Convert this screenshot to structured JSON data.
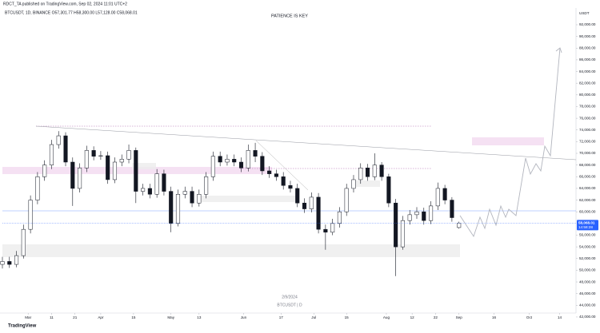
{
  "header": {
    "publisher": "RDCT_TA published on TradingView.com, Sep 02, 2024 11:01 UTC+2",
    "symbol_line": "BTCUSDT, 1D, BINANCE O57,301.77 H58,300.00 L57,128.00 C58,068.01"
  },
  "chart_data": {
    "type": "candlestick",
    "title": "PATIENCE IS KEY",
    "watermark_date": "2/9/2024",
    "watermark_symbol": "BTCUSDT | D",
    "currency": "USDT",
    "price_tag": "58,068.01",
    "countdown": "14:58:28",
    "brand": "TradingView",
    "up_color": "#ffffff",
    "down_color": "#131722",
    "outline_color": "#131722",
    "grid": false,
    "x": [
      -11,
      -8,
      -5,
      -2,
      1,
      4,
      7,
      10,
      13,
      16,
      19,
      22,
      25,
      28,
      31,
      34,
      37,
      40,
      43,
      46,
      49,
      52,
      55,
      58,
      61,
      64,
      67,
      70,
      73,
      76,
      79,
      82,
      85,
      88,
      91,
      94,
      97,
      100,
      103,
      106,
      109,
      112,
      115,
      118,
      121,
      124,
      127,
      130,
      133,
      136,
      139,
      142,
      145,
      148,
      151,
      154,
      157,
      160,
      163,
      166,
      169,
      172,
      175,
      178,
      181,
      184
    ],
    "open": [
      51000,
      51500,
      51000,
      52500,
      57000,
      62000,
      66000,
      68000,
      71500,
      73000,
      68500,
      64000,
      67500,
      70500,
      69500,
      69600,
      65500,
      68500,
      69000,
      70500,
      63500,
      64000,
      63000,
      66500,
      63500,
      58000,
      63000,
      63500,
      61500,
      63000,
      66000,
      69500,
      68500,
      69000,
      68500,
      67500,
      70500,
      69500,
      67000,
      66500,
      66000,
      64500,
      64000,
      61500,
      60500,
      62500,
      57000,
      56500,
      58000,
      60000,
      64000,
      65500,
      67500,
      66000,
      68000,
      66000,
      61500,
      54000,
      58500,
      59500,
      60000,
      58500,
      61000,
      64000,
      62000,
      57301.77
    ],
    "high": [
      52300,
      52300,
      53300,
      57800,
      62800,
      66800,
      68800,
      72300,
      73800,
      73600,
      69300,
      68300,
      71300,
      71200,
      70400,
      70300,
      69300,
      69800,
      71500,
      71000,
      64800,
      64800,
      67300,
      67200,
      64300,
      63800,
      64300,
      64300,
      63800,
      66800,
      70300,
      70300,
      69800,
      69800,
      69300,
      71500,
      71800,
      70200,
      67800,
      67200,
      66800,
      65300,
      64800,
      62300,
      63300,
      63200,
      57800,
      58800,
      60800,
      64800,
      66300,
      68300,
      68200,
      70000,
      68500,
      66500,
      62200,
      59300,
      60300,
      60800,
      60700,
      61800,
      65000,
      64600,
      62500,
      58300
    ],
    "low": [
      50300,
      50400,
      50500,
      52000,
      56300,
      61300,
      65300,
      67300,
      70800,
      67800,
      61000,
      63300,
      66800,
      68800,
      68900,
      64800,
      64900,
      67800,
      68300,
      61500,
      62800,
      62300,
      62400,
      62800,
      56500,
      57500,
      62300,
      60800,
      60900,
      62300,
      65300,
      67800,
      67900,
      67800,
      66800,
      66900,
      68500,
      66300,
      65800,
      65300,
      63800,
      63300,
      60800,
      59800,
      59900,
      56300,
      53500,
      56000,
      57300,
      59300,
      63300,
      64800,
      65300,
      65400,
      65300,
      60800,
      49000,
      53500,
      57800,
      58800,
      57800,
      57900,
      60300,
      61300,
      58300,
      57128
    ],
    "close": [
      51500,
      51000,
      52500,
      57000,
      62000,
      66000,
      68000,
      71500,
      73000,
      68500,
      64000,
      67500,
      70500,
      69500,
      69600,
      65500,
      68500,
      69000,
      70500,
      63500,
      64000,
      63000,
      66500,
      63500,
      58000,
      63000,
      63500,
      61500,
      63000,
      66000,
      69500,
      68500,
      69000,
      68500,
      67500,
      70500,
      69500,
      67000,
      66500,
      66000,
      64500,
      64000,
      61500,
      60500,
      62500,
      57000,
      56500,
      58000,
      60000,
      64000,
      65500,
      67500,
      66000,
      68000,
      66000,
      61500,
      54000,
      58500,
      59500,
      60000,
      58500,
      61000,
      64000,
      62000,
      59000,
      58068.01
    ],
    "xlim": [
      -11,
      234
    ],
    "xticks": [
      {
        "value": 0,
        "label": "Mar"
      },
      {
        "value": 10,
        "label": "11"
      },
      {
        "value": 20,
        "label": "21"
      },
      {
        "value": 31,
        "label": "Apr"
      },
      {
        "value": 45,
        "label": "15"
      },
      {
        "value": 61,
        "label": "May"
      },
      {
        "value": 73,
        "label": "13"
      },
      {
        "value": 92,
        "label": "Jun"
      },
      {
        "value": 108,
        "label": "17"
      },
      {
        "value": 122,
        "label": "Jul"
      },
      {
        "value": 136,
        "label": "15"
      },
      {
        "value": 153,
        "label": "Aug"
      },
      {
        "value": 164,
        "label": "12"
      },
      {
        "value": 174,
        "label": "22"
      },
      {
        "value": 184,
        "label": "Sep"
      },
      {
        "value": 199,
        "label": "16"
      },
      {
        "value": 214,
        "label": "Oct"
      },
      {
        "value": 227,
        "label": "14"
      }
    ],
    "ylim": [
      40900,
      94870
    ],
    "yticks": [
      {
        "value": 92000,
        "label": "92,000.00"
      },
      {
        "value": 90000,
        "label": "90,000.00"
      },
      {
        "value": 88000,
        "label": "88,000.00"
      },
      {
        "value": 86000,
        "label": "86,000.00"
      },
      {
        "value": 84000,
        "label": "84,000.00"
      },
      {
        "value": 82000,
        "label": "82,000.00"
      },
      {
        "value": 80000,
        "label": "80,000.00"
      },
      {
        "value": 78000,
        "label": "78,000.00"
      },
      {
        "value": 76000,
        "label": "76,000.00"
      },
      {
        "value": 74000,
        "label": "74,000.00"
      },
      {
        "value": 72000,
        "label": "72,000.00"
      },
      {
        "value": 70000,
        "label": "70,000.00"
      },
      {
        "value": 68000,
        "label": "68,000.00"
      },
      {
        "value": 66000,
        "label": "66,000.00"
      },
      {
        "value": 64000,
        "label": "64,000.00"
      },
      {
        "value": 62000,
        "label": "62,000.00"
      },
      {
        "value": 60000,
        "label": "60,000.00"
      },
      {
        "value": 56000,
        "label": "56,000.00"
      },
      {
        "value": 54000,
        "label": "54,000.00"
      },
      {
        "value": 52000,
        "label": "52,000.00"
      },
      {
        "value": 50000,
        "label": "50,000.00"
      },
      {
        "value": 48000,
        "label": "48,000.00"
      },
      {
        "value": 46000,
        "label": "46,000.00"
      },
      {
        "value": 44000,
        "label": "44,000.00"
      },
      {
        "value": 42000,
        "label": "42,000.00"
      }
    ]
  }
}
